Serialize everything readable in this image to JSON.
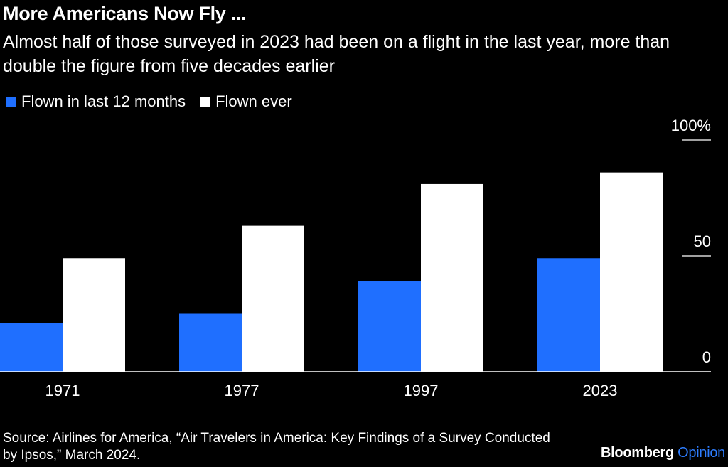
{
  "header": {
    "title": "More Americans Now Fly ...",
    "subtitle": "Almost half of those surveyed in 2023 had been on a flight in the last year, more than double the figure from five decades earlier"
  },
  "footer": {
    "source": "Source: Airlines for America, “Air Travelers in America: Key Findings of a Survey Conducted by Ipsos,” March 2024.",
    "brand_bold": "Bloomberg",
    "brand_light": "Opinion"
  },
  "chart_data": {
    "type": "bar",
    "categories": [
      "1971",
      "1977",
      "1997",
      "2023"
    ],
    "series": [
      {
        "name": "Flown in last 12 months",
        "color": "#1f6fff",
        "values": [
          21,
          25,
          39,
          49
        ]
      },
      {
        "name": "Flown ever",
        "color": "#ffffff",
        "values": [
          49,
          63,
          81,
          86
        ]
      }
    ],
    "ylim": [
      0,
      100
    ],
    "yticks": [
      {
        "value": 0,
        "label": "0"
      },
      {
        "value": 50,
        "label": "50"
      },
      {
        "value": 100,
        "label": "100%"
      }
    ],
    "legend_position": "top-left",
    "grid": false
  }
}
